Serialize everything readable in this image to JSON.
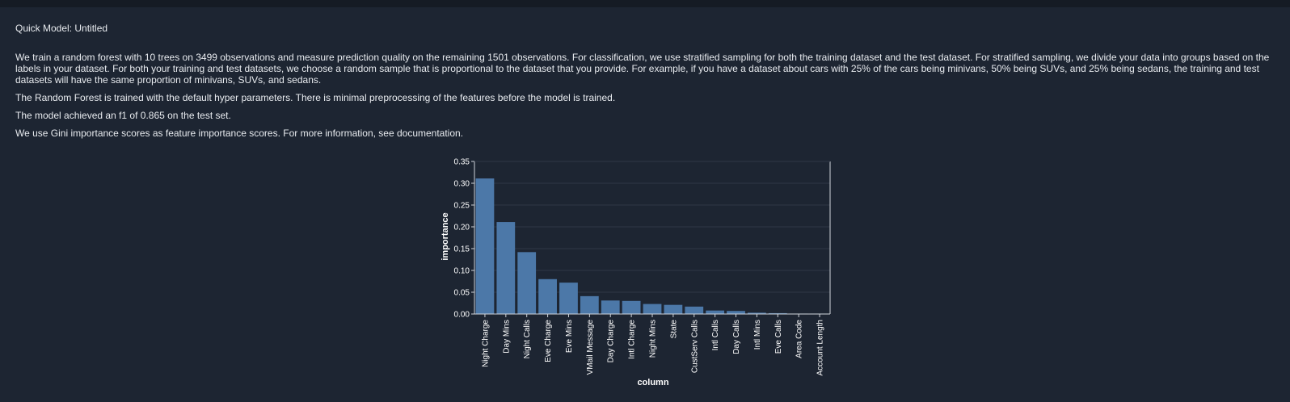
{
  "header": {
    "title": "Quick Model: Untitled"
  },
  "description": {
    "p1": "We train a random forest with 10 trees on 3499 observations and measure prediction quality on the remaining 1501 observations. For classification, we use stratified sampling for both the training dataset and the test dataset. For stratified sampling, we divide your data into groups based on the labels in your dataset. For both your training and test datasets, we choose a random sample that is proportional to the dataset that you provide. For example, if you have a dataset about cars with 25% of the cars being minivans, 50% being SUVs, and 25% being sedans, the training and test datasets will have the same proportion of minivans, SUVs, and sedans.",
    "p2": "The Random Forest is trained with the default hyper parameters. There is minimal preprocessing of the features before the model is trained.",
    "p3": "The model achieved an f1 of 0.865 on the test set.",
    "p4": "We use Gini importance scores as feature importance scores. For more information, see documentation."
  },
  "chart_data": {
    "type": "bar",
    "categories": [
      "Night Charge",
      "Day Mins",
      "Night Calls",
      "Eve Charge",
      "Eve Mins",
      "VMail Message",
      "Day Charge",
      "Intl Charge",
      "Night Mins",
      "State",
      "CustServ Calls",
      "Intl Calls",
      "Day Calls",
      "Intl Mins",
      "Eve Calls",
      "Area Code",
      "Account Length"
    ],
    "values": [
      0.311,
      0.211,
      0.142,
      0.08,
      0.072,
      0.041,
      0.031,
      0.03,
      0.023,
      0.021,
      0.017,
      0.008,
      0.007,
      0.003,
      0.002,
      0.001,
      0.001
    ],
    "xlabel": "column",
    "ylabel": "importance",
    "ylim": [
      0,
      0.35
    ],
    "yticks": [
      "0.00",
      "0.05",
      "0.10",
      "0.15",
      "0.20",
      "0.25",
      "0.30",
      "0.35"
    ],
    "grid": true,
    "bar_color": "#4c78a8"
  }
}
